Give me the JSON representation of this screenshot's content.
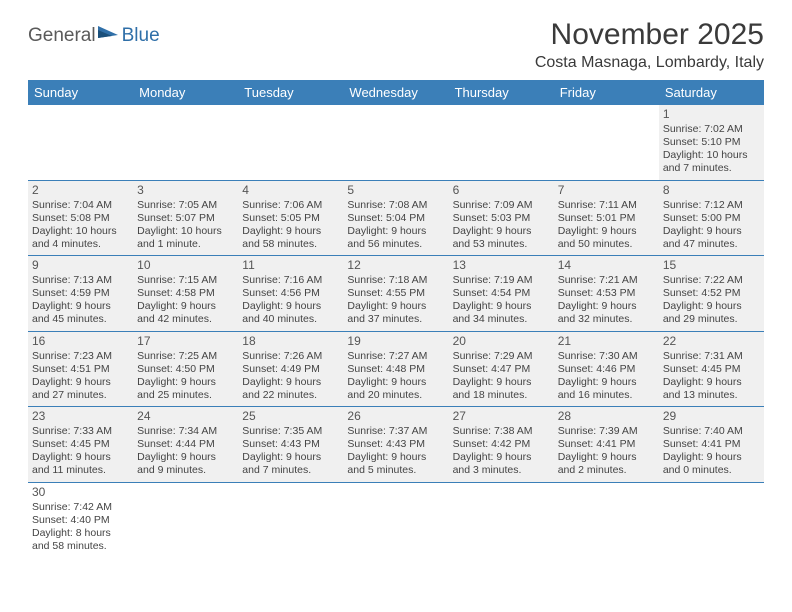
{
  "logo": {
    "part1": "General",
    "part2": "Blue"
  },
  "title": "November 2025",
  "location": "Costa Masnaga, Lombardy, Italy",
  "colors": {
    "header_bg": "#3b7fb8",
    "header_text": "#ffffff",
    "cell_bg": "#f0f0f0",
    "border": "#3b7fb8",
    "logo_gray": "#5a5a5a",
    "logo_blue": "#2f6fa8"
  },
  "day_names": [
    "Sunday",
    "Monday",
    "Tuesday",
    "Wednesday",
    "Thursday",
    "Friday",
    "Saturday"
  ],
  "weeks": [
    [
      null,
      null,
      null,
      null,
      null,
      null,
      {
        "n": "1",
        "sr": "Sunrise: 7:02 AM",
        "ss": "Sunset: 5:10 PM",
        "d1": "Daylight: 10 hours",
        "d2": "and 7 minutes."
      }
    ],
    [
      {
        "n": "2",
        "sr": "Sunrise: 7:04 AM",
        "ss": "Sunset: 5:08 PM",
        "d1": "Daylight: 10 hours",
        "d2": "and 4 minutes."
      },
      {
        "n": "3",
        "sr": "Sunrise: 7:05 AM",
        "ss": "Sunset: 5:07 PM",
        "d1": "Daylight: 10 hours",
        "d2": "and 1 minute."
      },
      {
        "n": "4",
        "sr": "Sunrise: 7:06 AM",
        "ss": "Sunset: 5:05 PM",
        "d1": "Daylight: 9 hours",
        "d2": "and 58 minutes."
      },
      {
        "n": "5",
        "sr": "Sunrise: 7:08 AM",
        "ss": "Sunset: 5:04 PM",
        "d1": "Daylight: 9 hours",
        "d2": "and 56 minutes."
      },
      {
        "n": "6",
        "sr": "Sunrise: 7:09 AM",
        "ss": "Sunset: 5:03 PM",
        "d1": "Daylight: 9 hours",
        "d2": "and 53 minutes."
      },
      {
        "n": "7",
        "sr": "Sunrise: 7:11 AM",
        "ss": "Sunset: 5:01 PM",
        "d1": "Daylight: 9 hours",
        "d2": "and 50 minutes."
      },
      {
        "n": "8",
        "sr": "Sunrise: 7:12 AM",
        "ss": "Sunset: 5:00 PM",
        "d1": "Daylight: 9 hours",
        "d2": "and 47 minutes."
      }
    ],
    [
      {
        "n": "9",
        "sr": "Sunrise: 7:13 AM",
        "ss": "Sunset: 4:59 PM",
        "d1": "Daylight: 9 hours",
        "d2": "and 45 minutes."
      },
      {
        "n": "10",
        "sr": "Sunrise: 7:15 AM",
        "ss": "Sunset: 4:58 PM",
        "d1": "Daylight: 9 hours",
        "d2": "and 42 minutes."
      },
      {
        "n": "11",
        "sr": "Sunrise: 7:16 AM",
        "ss": "Sunset: 4:56 PM",
        "d1": "Daylight: 9 hours",
        "d2": "and 40 minutes."
      },
      {
        "n": "12",
        "sr": "Sunrise: 7:18 AM",
        "ss": "Sunset: 4:55 PM",
        "d1": "Daylight: 9 hours",
        "d2": "and 37 minutes."
      },
      {
        "n": "13",
        "sr": "Sunrise: 7:19 AM",
        "ss": "Sunset: 4:54 PM",
        "d1": "Daylight: 9 hours",
        "d2": "and 34 minutes."
      },
      {
        "n": "14",
        "sr": "Sunrise: 7:21 AM",
        "ss": "Sunset: 4:53 PM",
        "d1": "Daylight: 9 hours",
        "d2": "and 32 minutes."
      },
      {
        "n": "15",
        "sr": "Sunrise: 7:22 AM",
        "ss": "Sunset: 4:52 PM",
        "d1": "Daylight: 9 hours",
        "d2": "and 29 minutes."
      }
    ],
    [
      {
        "n": "16",
        "sr": "Sunrise: 7:23 AM",
        "ss": "Sunset: 4:51 PM",
        "d1": "Daylight: 9 hours",
        "d2": "and 27 minutes."
      },
      {
        "n": "17",
        "sr": "Sunrise: 7:25 AM",
        "ss": "Sunset: 4:50 PM",
        "d1": "Daylight: 9 hours",
        "d2": "and 25 minutes."
      },
      {
        "n": "18",
        "sr": "Sunrise: 7:26 AM",
        "ss": "Sunset: 4:49 PM",
        "d1": "Daylight: 9 hours",
        "d2": "and 22 minutes."
      },
      {
        "n": "19",
        "sr": "Sunrise: 7:27 AM",
        "ss": "Sunset: 4:48 PM",
        "d1": "Daylight: 9 hours",
        "d2": "and 20 minutes."
      },
      {
        "n": "20",
        "sr": "Sunrise: 7:29 AM",
        "ss": "Sunset: 4:47 PM",
        "d1": "Daylight: 9 hours",
        "d2": "and 18 minutes."
      },
      {
        "n": "21",
        "sr": "Sunrise: 7:30 AM",
        "ss": "Sunset: 4:46 PM",
        "d1": "Daylight: 9 hours",
        "d2": "and 16 minutes."
      },
      {
        "n": "22",
        "sr": "Sunrise: 7:31 AM",
        "ss": "Sunset: 4:45 PM",
        "d1": "Daylight: 9 hours",
        "d2": "and 13 minutes."
      }
    ],
    [
      {
        "n": "23",
        "sr": "Sunrise: 7:33 AM",
        "ss": "Sunset: 4:45 PM",
        "d1": "Daylight: 9 hours",
        "d2": "and 11 minutes."
      },
      {
        "n": "24",
        "sr": "Sunrise: 7:34 AM",
        "ss": "Sunset: 4:44 PM",
        "d1": "Daylight: 9 hours",
        "d2": "and 9 minutes."
      },
      {
        "n": "25",
        "sr": "Sunrise: 7:35 AM",
        "ss": "Sunset: 4:43 PM",
        "d1": "Daylight: 9 hours",
        "d2": "and 7 minutes."
      },
      {
        "n": "26",
        "sr": "Sunrise: 7:37 AM",
        "ss": "Sunset: 4:43 PM",
        "d1": "Daylight: 9 hours",
        "d2": "and 5 minutes."
      },
      {
        "n": "27",
        "sr": "Sunrise: 7:38 AM",
        "ss": "Sunset: 4:42 PM",
        "d1": "Daylight: 9 hours",
        "d2": "and 3 minutes."
      },
      {
        "n": "28",
        "sr": "Sunrise: 7:39 AM",
        "ss": "Sunset: 4:41 PM",
        "d1": "Daylight: 9 hours",
        "d2": "and 2 minutes."
      },
      {
        "n": "29",
        "sr": "Sunrise: 7:40 AM",
        "ss": "Sunset: 4:41 PM",
        "d1": "Daylight: 9 hours",
        "d2": "and 0 minutes."
      }
    ],
    [
      {
        "n": "30",
        "sr": "Sunrise: 7:42 AM",
        "ss": "Sunset: 4:40 PM",
        "d1": "Daylight: 8 hours",
        "d2": "and 58 minutes."
      },
      null,
      null,
      null,
      null,
      null,
      null
    ]
  ]
}
